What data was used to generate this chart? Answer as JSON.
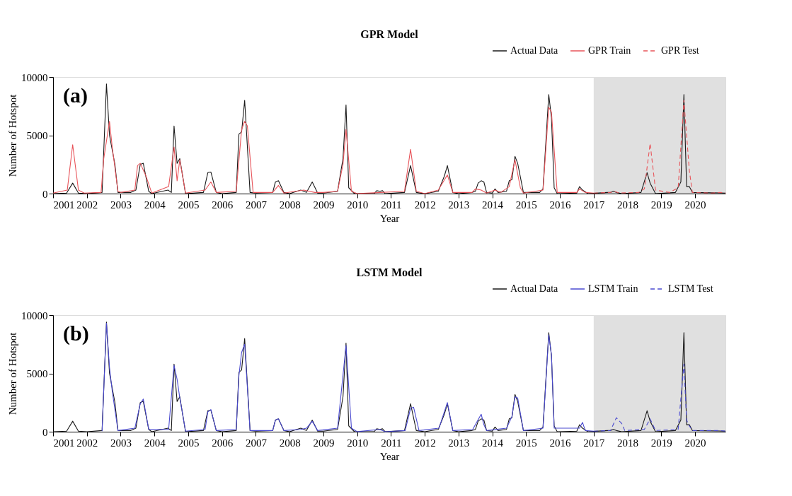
{
  "chart_data": [
    {
      "type": "line",
      "title": "GPR Model",
      "xlabel": "Year",
      "ylabel": "Number of Hotspot",
      "annotations": [
        "(a)"
      ],
      "xlim": [
        2001,
        2020.9
      ],
      "xticks": [
        2001,
        2002,
        2003,
        2004,
        2005,
        2006,
        2007,
        2008,
        2009,
        2010,
        2011,
        2012,
        2013,
        2014,
        2015,
        2016,
        2017,
        2018,
        2019,
        2020
      ],
      "ylim": [
        0,
        10000
      ],
      "yticks": [
        0,
        5000,
        10000
      ],
      "legend": "top right",
      "grid": false,
      "marker": "none",
      "bands": [
        {
          "axis": "x",
          "from": 2017,
          "to": 2020.9,
          "label": null,
          "color": "#e0e0e0"
        }
      ],
      "series": [
        {
          "name": "Actual Data",
          "color": "#1a1a1a",
          "line_style": "solid",
          "x": [
            2001,
            2001.4,
            2001.58,
            2001.75,
            2002.0,
            2002.45,
            2002.58,
            2002.67,
            2002.83,
            2002.92,
            2003.3,
            2003.45,
            2003.58,
            2003.67,
            2003.83,
            2003.92,
            2004.4,
            2004.5,
            2004.58,
            2004.67,
            2004.75,
            2004.92,
            2005.45,
            2005.58,
            2005.67,
            2005.83,
            2006.0,
            2006.42,
            2006.5,
            2006.58,
            2006.67,
            2006.83,
            2007.0,
            2007.5,
            2007.58,
            2007.67,
            2007.83,
            2008.0,
            2008.33,
            2008.5,
            2008.67,
            2008.83,
            2009.0,
            2009.42,
            2009.58,
            2009.67,
            2009.75,
            2009.92,
            2010.5,
            2010.58,
            2010.67,
            2010.75,
            2010.83,
            2011.4,
            2011.58,
            2011.75,
            2012.0,
            2012.4,
            2012.58,
            2012.67,
            2012.83,
            2013.0,
            2013.4,
            2013.5,
            2013.58,
            2013.67,
            2013.75,
            2013.83,
            2014.0,
            2014.08,
            2014.17,
            2014.42,
            2014.5,
            2014.58,
            2014.67,
            2014.75,
            2014.92,
            2015.4,
            2015.5,
            2015.67,
            2015.75,
            2015.83,
            2015.92,
            2016.5,
            2016.58,
            2016.67,
            2016.83,
            2017.4,
            2017.5,
            2017.58,
            2017.67,
            2017.83,
            2018.4,
            2018.58,
            2018.67,
            2018.83,
            2019.42,
            2019.58,
            2019.67,
            2019.75,
            2019.83,
            2019.92,
            2020.9
          ],
          "values": [
            0,
            50,
            900,
            50,
            0,
            100,
            9400,
            5000,
            2500,
            100,
            100,
            300,
            2500,
            2600,
            200,
            0,
            300,
            100,
            5800,
            2600,
            3000,
            0,
            100,
            1800,
            1850,
            100,
            0,
            100,
            5100,
            5300,
            8000,
            100,
            50,
            100,
            1000,
            1100,
            100,
            0,
            300,
            100,
            1000,
            50,
            50,
            200,
            3000,
            7600,
            500,
            0,
            0,
            250,
            200,
            250,
            0,
            100,
            2400,
            100,
            0,
            200,
            1500,
            2400,
            100,
            0,
            100,
            200,
            900,
            1100,
            1000,
            100,
            50,
            400,
            100,
            200,
            1100,
            1200,
            3200,
            2600,
            100,
            100,
            400,
            8500,
            6500,
            500,
            0,
            50,
            600,
            300,
            0,
            100,
            100,
            200,
            100,
            0,
            100,
            1800,
            900,
            0,
            100,
            1000,
            8500,
            600,
            600,
            100,
            50
          ]
        },
        {
          "name": "GPR Train",
          "color": "#e8545a",
          "line_style": "solid",
          "x": [
            2001,
            2001.42,
            2001.58,
            2001.75,
            2001.92,
            2002.42,
            2002.5,
            2002.67,
            2002.75,
            2002.92,
            2003.0,
            2003.42,
            2003.5,
            2003.58,
            2003.75,
            2003.92,
            2004.42,
            2004.58,
            2004.67,
            2004.75,
            2004.92,
            2005.5,
            2005.67,
            2005.83,
            2006.42,
            2006.58,
            2006.67,
            2006.75,
            2006.92,
            2007.5,
            2007.67,
            2007.83,
            2008.42,
            2008.58,
            2008.75,
            2009.0,
            2009.42,
            2009.58,
            2009.67,
            2009.83,
            2010.0,
            2011.4,
            2011.58,
            2011.75,
            2012.0,
            2012.4,
            2012.67,
            2012.83,
            2013.4,
            2013.5,
            2013.67,
            2013.83,
            2014.08,
            2014.25,
            2014.5,
            2014.67,
            2014.83,
            2014.92,
            2015.5,
            2015.67,
            2015.75,
            2015.92,
            2016.5,
            2016.58,
            2016.75,
            2017
          ],
          "values": [
            50,
            300,
            4200,
            300,
            50,
            100,
            3000,
            6200,
            4000,
            200,
            100,
            300,
            2400,
            2600,
            1500,
            50,
            600,
            4000,
            1100,
            2900,
            50,
            300,
            1000,
            100,
            200,
            5500,
            6200,
            5800,
            100,
            100,
            700,
            50,
            300,
            200,
            100,
            100,
            200,
            2500,
            5500,
            200,
            0,
            200,
            3800,
            200,
            0,
            300,
            1600,
            100,
            100,
            400,
            300,
            50,
            300,
            100,
            600,
            2900,
            500,
            50,
            300,
            7400,
            7000,
            100,
            100,
            400,
            100,
            50
          ]
        },
        {
          "name": "GPR Test",
          "color": "#e8545a",
          "line_style": "dashed",
          "x": [
            2017,
            2017.5,
            2017.6,
            2017.75,
            2018.33,
            2018.5,
            2018.67,
            2018.83,
            2019.25,
            2019.5,
            2019.67,
            2019.83,
            2019.92,
            2020.5,
            2020.75,
            2020.9
          ],
          "values": [
            50,
            100,
            200,
            50,
            100,
            400,
            4300,
            300,
            100,
            500,
            8000,
            2000,
            100,
            50,
            100,
            50
          ]
        }
      ]
    },
    {
      "type": "line",
      "title": "LSTM Model",
      "xlabel": "Year",
      "ylabel": "Number of Hotspot",
      "annotations": [
        "(b)"
      ],
      "xlim": [
        2001,
        2020.9
      ],
      "xticks": [
        2001,
        2002,
        2003,
        2004,
        2005,
        2006,
        2007,
        2008,
        2009,
        2010,
        2011,
        2012,
        2013,
        2014,
        2015,
        2016,
        2017,
        2018,
        2019,
        2020
      ],
      "ylim": [
        0,
        10000
      ],
      "yticks": [
        0,
        5000,
        10000
      ],
      "legend": "top right",
      "grid": false,
      "marker": "none",
      "bands": [
        {
          "axis": "x",
          "from": 2017,
          "to": 2020.9,
          "label": null,
          "color": "#e0e0e0"
        }
      ],
      "series": [
        {
          "name": "Actual Data",
          "color": "#1a1a1a",
          "line_style": "solid",
          "x": [
            2001,
            2001.4,
            2001.58,
            2001.75,
            2002.0,
            2002.45,
            2002.58,
            2002.67,
            2002.83,
            2002.92,
            2003.3,
            2003.45,
            2003.58,
            2003.67,
            2003.83,
            2003.92,
            2004.4,
            2004.5,
            2004.58,
            2004.67,
            2004.75,
            2004.92,
            2005.45,
            2005.58,
            2005.67,
            2005.83,
            2006.0,
            2006.42,
            2006.5,
            2006.58,
            2006.67,
            2006.83,
            2007.0,
            2007.5,
            2007.58,
            2007.67,
            2007.83,
            2008.0,
            2008.33,
            2008.5,
            2008.67,
            2008.83,
            2009.0,
            2009.42,
            2009.58,
            2009.67,
            2009.75,
            2009.92,
            2010.5,
            2010.58,
            2010.67,
            2010.75,
            2010.83,
            2011.4,
            2011.58,
            2011.75,
            2012.0,
            2012.4,
            2012.58,
            2012.67,
            2012.83,
            2013.0,
            2013.4,
            2013.5,
            2013.58,
            2013.67,
            2013.75,
            2013.83,
            2014.0,
            2014.08,
            2014.17,
            2014.42,
            2014.5,
            2014.58,
            2014.67,
            2014.75,
            2014.92,
            2015.4,
            2015.5,
            2015.67,
            2015.75,
            2015.83,
            2015.92,
            2016.5,
            2016.58,
            2016.67,
            2016.83,
            2017.4,
            2017.5,
            2017.58,
            2017.67,
            2017.83,
            2018.4,
            2018.58,
            2018.67,
            2018.83,
            2019.42,
            2019.58,
            2019.67,
            2019.75,
            2019.83,
            2019.92,
            2020.9
          ],
          "values": [
            0,
            50,
            900,
            50,
            0,
            100,
            9400,
            5000,
            2500,
            100,
            100,
            300,
            2500,
            2600,
            200,
            0,
            300,
            100,
            5800,
            2600,
            3000,
            0,
            100,
            1800,
            1850,
            100,
            0,
            100,
            5100,
            5300,
            8000,
            100,
            50,
            100,
            1000,
            1100,
            100,
            0,
            300,
            100,
            1000,
            50,
            50,
            200,
            3000,
            7600,
            500,
            0,
            0,
            250,
            200,
            250,
            0,
            100,
            2400,
            100,
            0,
            200,
            1500,
            2400,
            100,
            0,
            100,
            200,
            900,
            1100,
            1000,
            100,
            50,
            400,
            100,
            200,
            1100,
            1200,
            3200,
            2600,
            100,
            100,
            400,
            8500,
            6500,
            500,
            0,
            50,
            600,
            300,
            0,
            100,
            100,
            200,
            100,
            0,
            100,
            1800,
            900,
            0,
            100,
            1000,
            8500,
            600,
            600,
            100,
            50
          ]
        },
        {
          "name": "LSTM Train",
          "color": "#4a4ad0",
          "line_style": "solid",
          "x": [
            2002.45,
            2002.58,
            2002.67,
            2002.75,
            2002.92,
            2003.42,
            2003.58,
            2003.67,
            2003.83,
            2004.42,
            2004.58,
            2004.67,
            2004.75,
            2004.92,
            2005.5,
            2005.58,
            2005.67,
            2005.83,
            2006.42,
            2006.5,
            2006.58,
            2006.67,
            2006.83,
            2007.5,
            2007.58,
            2007.67,
            2007.83,
            2008.33,
            2008.5,
            2008.67,
            2008.83,
            2009.42,
            2009.67,
            2009.83,
            2010.0,
            2010.67,
            2010.83,
            2011.42,
            2011.58,
            2011.67,
            2011.83,
            2012.42,
            2012.67,
            2012.83,
            2013.42,
            2013.67,
            2013.75,
            2013.83,
            2014.42,
            2014.58,
            2014.67,
            2014.75,
            2014.92,
            2015.5,
            2015.67,
            2015.75,
            2015.83,
            2016.58,
            2016.67,
            2016.75,
            2017
          ],
          "values": [
            50,
            9300,
            5500,
            3500,
            100,
            300,
            2400,
            2800,
            200,
            200,
            5700,
            4500,
            2900,
            50,
            200,
            1700,
            1900,
            100,
            200,
            4800,
            6800,
            7500,
            100,
            100,
            1000,
            1100,
            100,
            200,
            300,
            900,
            100,
            300,
            7400,
            300,
            0,
            200,
            0,
            100,
            2000,
            2100,
            100,
            300,
            2500,
            100,
            200,
            1500,
            600,
            100,
            300,
            1300,
            3000,
            2900,
            100,
            300,
            8300,
            6600,
            300,
            300,
            800,
            100,
            50
          ]
        },
        {
          "name": "LSTM Test",
          "color": "#4a4ad0",
          "line_style": "dashed",
          "x": [
            2017,
            2017.5,
            2017.67,
            2017.83,
            2017.92,
            2018.5,
            2018.67,
            2018.83,
            2019.5,
            2019.67,
            2019.75,
            2019.83,
            2019.92,
            2020.75,
            2020.9
          ],
          "values": [
            50,
            100,
            1200,
            700,
            100,
            200,
            1100,
            100,
            200,
            5800,
            1000,
            500,
            100,
            100,
            50
          ]
        }
      ]
    }
  ]
}
